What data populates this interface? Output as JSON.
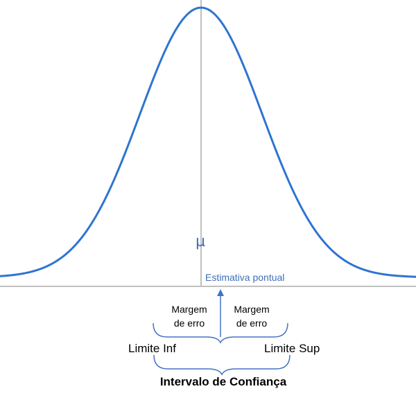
{
  "diagram": {
    "center_symbol": "µ",
    "point_estimate_label": "Estimativa pontual",
    "margin_left": {
      "line1": "Margem",
      "line2": "de erro"
    },
    "margin_right": {
      "line1": "Margem",
      "line2": "de erro"
    },
    "lower_limit_label": "Limite Inf",
    "upper_limit_label": "Limite Sup",
    "interval_label": "Intervalo de Confiança",
    "colors": {
      "curve": "#2e74d0",
      "axis": "#bfbfbf",
      "brace": "#4472c4",
      "annotation_text": "#3f6fb5"
    }
  }
}
